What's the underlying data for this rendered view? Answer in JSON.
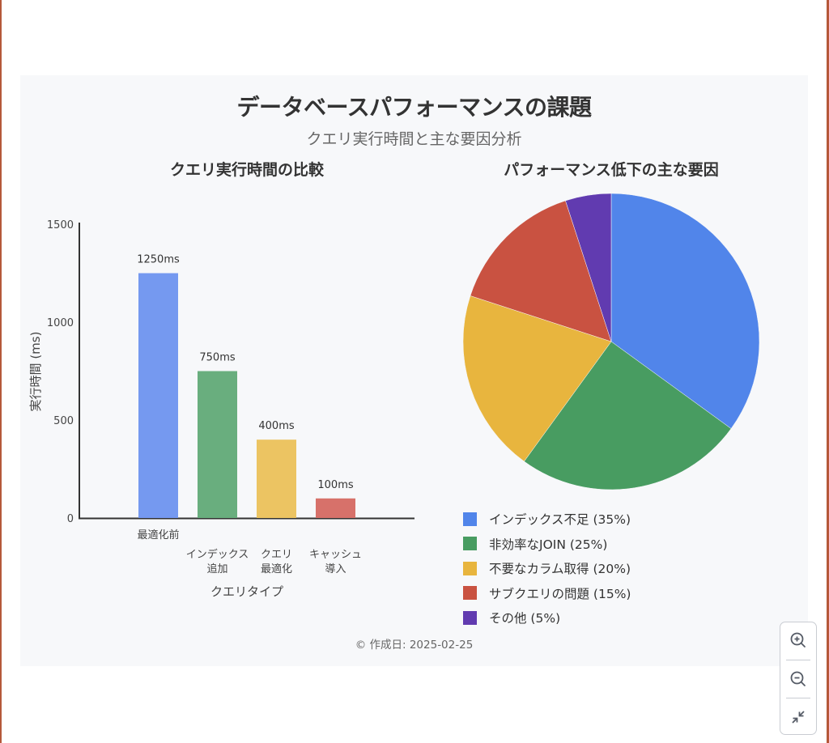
{
  "header": {
    "title": "データベースパフォーマンスの課題",
    "subtitle": "クエリ実行時間と主な要因分析"
  },
  "bar_chart": {
    "title": "クエリ実行時間の比較",
    "ylabel": "実行時間 (ms)",
    "xlabel": "クエリタイプ",
    "yticks": [
      "0",
      "500",
      "1000",
      "1500"
    ],
    "categories": [
      {
        "line1": "最適化前",
        "line2": ""
      },
      {
        "line1": "インデックス",
        "line2": "追加"
      },
      {
        "line1": "クエリ",
        "line2": "最適化"
      },
      {
        "line1": "キャッシュ",
        "line2": "導入"
      }
    ],
    "value_labels": [
      "1250ms",
      "750ms",
      "400ms",
      "100ms"
    ]
  },
  "pie_chart": {
    "title": "パフォーマンス低下の主な要因",
    "legend": [
      {
        "label": "インデックス不足 (35%)",
        "color": "#5185ea"
      },
      {
        "label": "非効率なJOIN (25%)",
        "color": "#489c61"
      },
      {
        "label": "不要なカラム取得 (20%)",
        "color": "#e8b53e"
      },
      {
        "label": "サブクエリの問題 (15%)",
        "color": "#c95241"
      },
      {
        "label": "その他 (5%)",
        "color": "#613bb0"
      }
    ]
  },
  "footer": {
    "text": "© 作成日: 2025-02-25"
  },
  "zoom_controls": {
    "zoom_in": "zoom-in",
    "zoom_out": "zoom-out",
    "fit": "collapse"
  },
  "chart_data": [
    {
      "type": "bar",
      "title": "クエリ実行時間の比較",
      "categories": [
        "最適化前",
        "インデックス追加",
        "クエリ最適化",
        "キャッシュ導入"
      ],
      "values": [
        1250,
        750,
        400,
        100
      ],
      "colors": [
        "#7599f0",
        "#69ae7e",
        "#ecc462",
        "#d7716a"
      ],
      "xlabel": "クエリタイプ",
      "ylabel": "実行時間 (ms)",
      "ylim": [
        0,
        1500
      ],
      "yticks": [
        0,
        500,
        1000,
        1500
      ],
      "data_labels": [
        "1250ms",
        "750ms",
        "400ms",
        "100ms"
      ],
      "grid": false
    },
    {
      "type": "pie",
      "title": "パフォーマンス低下の主な要因",
      "categories": [
        "インデックス不足",
        "非効率なJOIN",
        "不要なカラム取得",
        "サブクエリの問題",
        "その他"
      ],
      "values": [
        35,
        25,
        20,
        15,
        5
      ],
      "colors": [
        "#5185ea",
        "#489c61",
        "#e8b53e",
        "#c95241",
        "#613bb0"
      ],
      "legend_position": "bottom"
    }
  ]
}
